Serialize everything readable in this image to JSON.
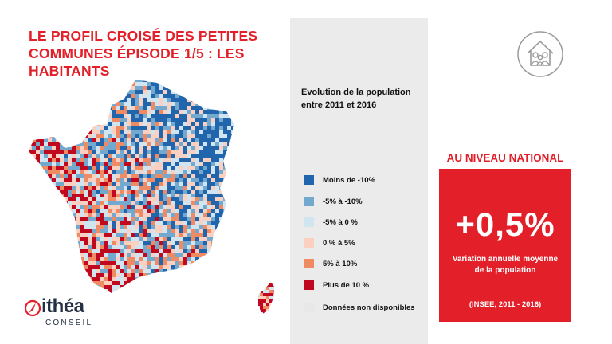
{
  "header": {
    "title": "LE PROFIL CROISÉ DES PETITES COMMUNES ÉPISODE 1/5  : LES HABITANTS"
  },
  "legend": {
    "title": "Evolution de la population entre 2011 et 2016",
    "items": [
      {
        "label": "Moins de -10%",
        "color": "#2166ac"
      },
      {
        "label": "-5% à -10%",
        "color": "#74a9cf"
      },
      {
        "label": "-5% à 0 %",
        "color": "#d1e5f0"
      },
      {
        "label": "0 % à 5%",
        "color": "#fbd0c0"
      },
      {
        "label": "5% à 10%",
        "color": "#ef8a62"
      },
      {
        "label": "Plus de 10 %",
        "color": "#c0081f"
      },
      {
        "label": "Données non disponibles",
        "color": "#e8e8e8"
      }
    ]
  },
  "national": {
    "heading": "AU NIVEAU NATIONAL",
    "value": "+0,5%",
    "description": "Variation annuelle moyenne de la population",
    "source": "(INSEE, 2011 - 2016)"
  },
  "brand": {
    "name": "ithéa",
    "subtitle": "CONSEIL",
    "accent": "#e3202a",
    "dark": "#233044"
  },
  "icons": {
    "header": "house-people-icon",
    "logo": "compass-icon"
  }
}
